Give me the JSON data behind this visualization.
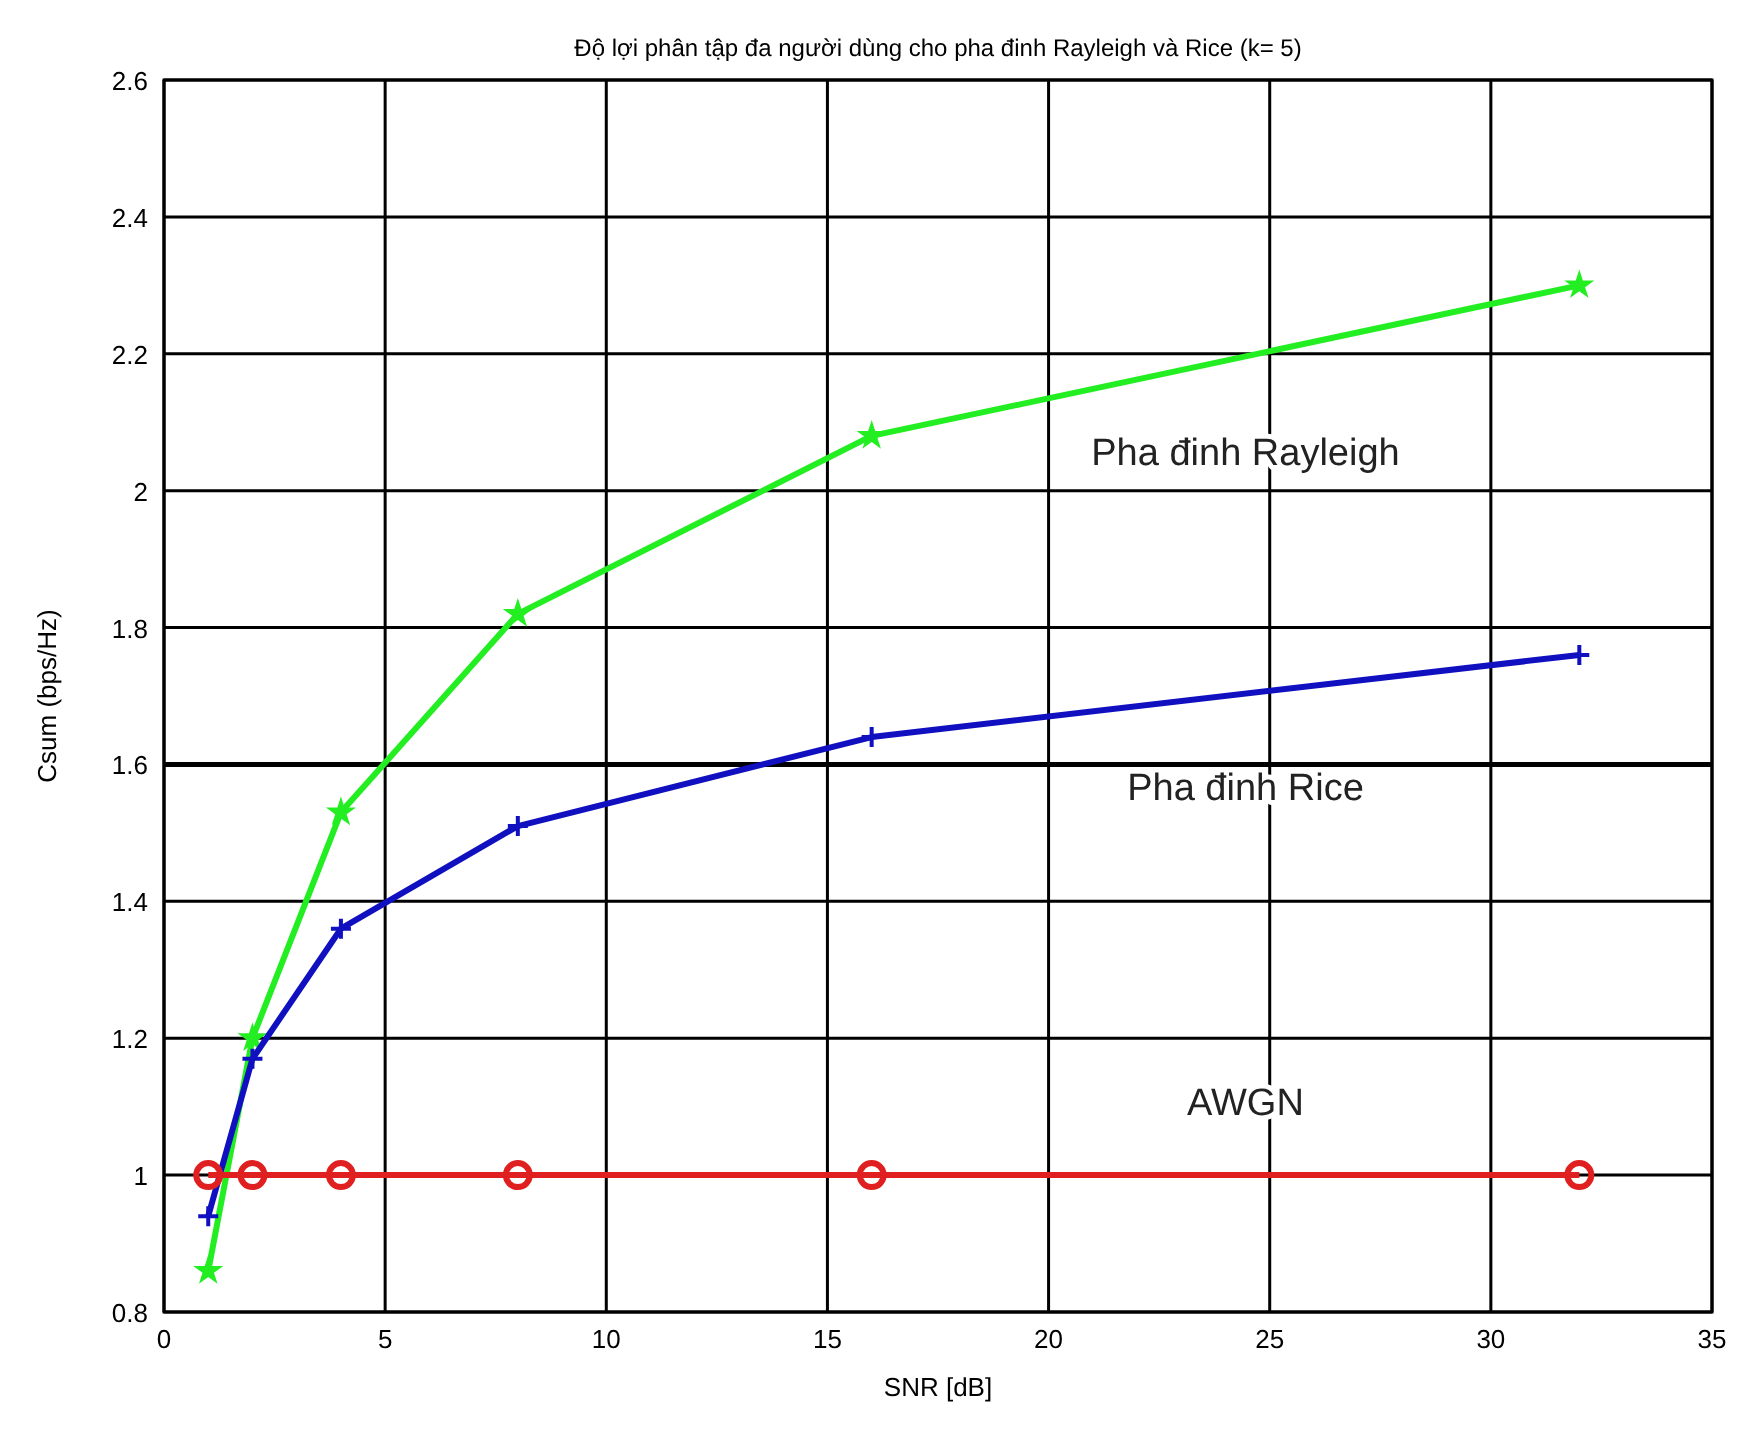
{
  "chart_data": {
    "type": "line",
    "title": "Độ lợi phân tập đa người dùng cho pha đinh Rayleigh và Rice (k= 5)",
    "xlabel": "SNR [dB]",
    "ylabel": "Csum (bps/Hz)",
    "x": [
      1,
      2,
      4,
      8,
      16,
      32
    ],
    "series": [
      {
        "color": "#22ee22",
        "marker": "star",
        "values": [
          0.86,
          1.2,
          1.53,
          1.82,
          2.08,
          2.3
        ]
      },
      {
        "color": "#1010c0",
        "marker": "cross",
        "values": [
          0.94,
          1.17,
          1.36,
          1.51,
          1.64,
          1.76
        ]
      },
      {
        "color": "#e02020",
        "marker": "circle",
        "values": [
          1,
          1,
          1,
          1,
          1,
          1
        ]
      }
    ],
    "xlim": [
      0,
      35
    ],
    "xticks": [
      0,
      5,
      10,
      15,
      20,
      25,
      30,
      35
    ],
    "ylim": [
      0.8,
      2.6
    ],
    "yticks": [
      0.8,
      1,
      1.2,
      1.4,
      1.6,
      1.8,
      2,
      2.2,
      2.4,
      2.6
    ],
    "grid": true,
    "line_style": "solid",
    "ref_lines": [
      {
        "axis": "y",
        "value": 1.6,
        "color": "#000000"
      }
    ],
    "annotations": [
      "Pha đinh Rayleigh",
      "Pha đinh Rice",
      "AWGN"
    ]
  }
}
